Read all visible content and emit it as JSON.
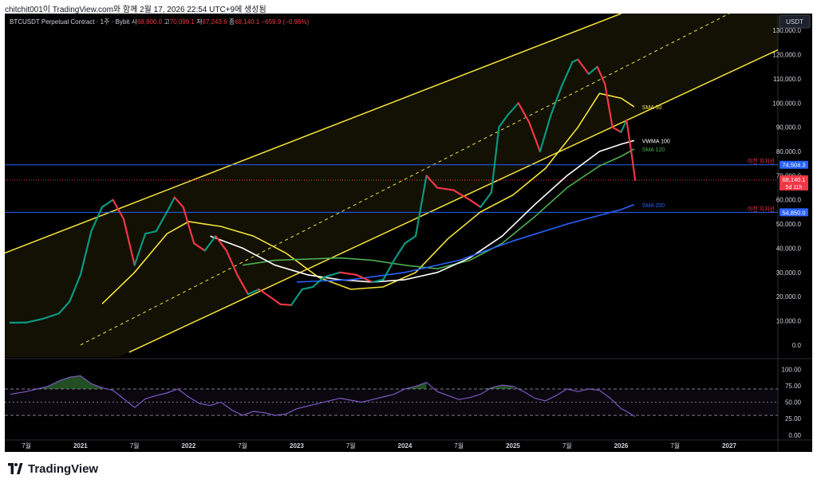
{
  "header": {
    "caption": "chitchit001이 TradingView.com와 함께 2월 17, 2026 22:54 UTC+9에 생성됨"
  },
  "footer": {
    "brand": "TradingView"
  },
  "legend": {
    "symbol": "BTCUSDT Perpetual Contract · 1주 · Bybit",
    "open_label": "시",
    "open": "68,800.0",
    "high_label": "고",
    "high": "70,099.1",
    "low_label": "저",
    "low": "67,243.6",
    "close_label": "종",
    "close": "68,140.1",
    "change": "−659.9 (−0.96%)"
  },
  "price_axis": {
    "currency": "USDT",
    "ticks": [
      {
        "v": 0,
        "label": "0.0"
      },
      {
        "v": 10000,
        "label": "10,000.0"
      },
      {
        "v": 20000,
        "label": "20,000.0"
      },
      {
        "v": 30000,
        "label": "30,000.0"
      },
      {
        "v": 40000,
        "label": "40,000.0"
      },
      {
        "v": 50000,
        "label": "50,000.0"
      },
      {
        "v": 60000,
        "label": "60,000.0"
      },
      {
        "v": 70000,
        "label": "70,000.0"
      },
      {
        "v": 80000,
        "label": "80,000.0"
      },
      {
        "v": 90000,
        "label": "90,000.0"
      },
      {
        "v": 100000,
        "label": "100,000.0"
      },
      {
        "v": 110000,
        "label": "110,000.0"
      },
      {
        "v": 120000,
        "label": "120,000.0"
      },
      {
        "v": 130000,
        "label": "130,000.0"
      }
    ]
  },
  "rsi_axis": {
    "ticks": [
      {
        "v": 100,
        "label": "100.00"
      },
      {
        "v": 75,
        "label": "75.00"
      },
      {
        "v": 50,
        "label": "50.00"
      },
      {
        "v": 25,
        "label": "25.00"
      },
      {
        "v": 0,
        "label": "0.00"
      }
    ]
  },
  "time_axis": {
    "ticks": [
      {
        "t": 2020.5,
        "label": "7월",
        "bold": false
      },
      {
        "t": 2021.0,
        "label": "2021",
        "bold": true
      },
      {
        "t": 2021.5,
        "label": "7월",
        "bold": false
      },
      {
        "t": 2022.0,
        "label": "2022",
        "bold": true
      },
      {
        "t": 2022.5,
        "label": "7월",
        "bold": false
      },
      {
        "t": 2023.0,
        "label": "2023",
        "bold": true
      },
      {
        "t": 2023.5,
        "label": "7월",
        "bold": false
      },
      {
        "t": 2024.0,
        "label": "2024",
        "bold": true
      },
      {
        "t": 2024.5,
        "label": "7월",
        "bold": false
      },
      {
        "t": 2025.0,
        "label": "2025",
        "bold": true
      },
      {
        "t": 2025.5,
        "label": "7월",
        "bold": false
      },
      {
        "t": 2026.0,
        "label": "2026",
        "bold": true
      },
      {
        "t": 2026.5,
        "label": "7월",
        "bold": false
      },
      {
        "t": 2027.0,
        "label": "2027",
        "bold": true
      }
    ]
  },
  "chart_data": {
    "type": "line",
    "title": "BTCUSDT Perpetual Contract · 1주 · Bybit",
    "ylim": [
      -5000,
      137000
    ],
    "xlim": [
      2020.3,
      2027.45
    ],
    "price_series": {
      "name": "",
      "t": [
        2020.35,
        2020.5,
        2020.65,
        2020.8,
        2020.9,
        2021.0,
        2021.1,
        2021.2,
        2021.3,
        2021.4,
        2021.5,
        2021.6,
        2021.7,
        2021.8,
        2021.87,
        2021.95,
        2022.05,
        2022.15,
        2022.25,
        2022.35,
        2022.45,
        2022.55,
        2022.65,
        2022.75,
        2022.85,
        2022.95,
        2023.05,
        2023.15,
        2023.25,
        2023.4,
        2023.55,
        2023.7,
        2023.8,
        2023.9,
        2024.0,
        2024.1,
        2024.2,
        2024.3,
        2024.45,
        2024.6,
        2024.7,
        2024.8,
        2024.87,
        2024.95,
        2025.05,
        2025.15,
        2025.25,
        2025.35,
        2025.45,
        2025.55,
        2025.6,
        2025.7,
        2025.78,
        2025.85,
        2025.92,
        2026.0,
        2026.05,
        2026.1,
        2026.13
      ],
      "values": [
        9200,
        9300,
        10800,
        13000,
        18000,
        29000,
        47000,
        57000,
        60000,
        52000,
        33000,
        46000,
        47000,
        55000,
        61000,
        57000,
        42000,
        39000,
        45000,
        39000,
        29000,
        21000,
        23000,
        20000,
        16800,
        16500,
        23000,
        24000,
        28000,
        30000,
        29000,
        26000,
        27000,
        35000,
        42000,
        45000,
        70000,
        65000,
        64000,
        60000,
        57000,
        63000,
        90000,
        95000,
        100000,
        92000,
        80000,
        95000,
        107000,
        117000,
        118000,
        112000,
        115000,
        108000,
        90000,
        88000,
        93000,
        78000,
        68140
      ]
    },
    "channel": {
      "upper": [
        [
          2020.3,
          38000
        ],
        [
          2026.0,
          137000
        ]
      ],
      "lower": [
        [
          2021.45,
          -3000
        ],
        [
          2027.45,
          122000
        ]
      ],
      "middle": [
        [
          2021.0,
          0
        ],
        [
          2027.0,
          137000
        ]
      ]
    },
    "series": [
      {
        "name": "SMA 50",
        "color": "#f7e43a",
        "t": [
          2021.2,
          2021.5,
          2021.8,
          2022.0,
          2022.3,
          2022.6,
          2022.9,
          2023.2,
          2023.5,
          2023.8,
          2024.1,
          2024.4,
          2024.7,
          2025.0,
          2025.3,
          2025.6,
          2025.8,
          2026.0,
          2026.12
        ],
        "values": [
          17000,
          30000,
          46000,
          51000,
          49000,
          45000,
          38000,
          28000,
          23000,
          24000,
          30000,
          44000,
          55000,
          62000,
          73000,
          90000,
          104000,
          102000,
          98500
        ]
      },
      {
        "name": "SMA 120",
        "color": "#4caf50",
        "t": [
          2022.5,
          2022.8,
          2023.1,
          2023.4,
          2023.7,
          2024.0,
          2024.3,
          2024.6,
          2024.9,
          2025.2,
          2025.5,
          2025.8,
          2026.0,
          2026.12
        ],
        "values": [
          33000,
          35000,
          35500,
          36000,
          35000,
          33000,
          31500,
          35000,
          42000,
          53000,
          65000,
          74000,
          78000,
          81000
        ]
      },
      {
        "name": "VWMA 100",
        "color": "#ffffff",
        "t": [
          2022.2,
          2022.5,
          2022.8,
          2023.1,
          2023.4,
          2023.7,
          2024.0,
          2024.3,
          2024.6,
          2024.9,
          2025.2,
          2025.5,
          2025.8,
          2026.0,
          2026.12
        ],
        "values": [
          45000,
          40000,
          33000,
          29000,
          27000,
          26000,
          27000,
          30000,
          36000,
          45000,
          58000,
          70000,
          80000,
          83000,
          84500
        ]
      },
      {
        "name": "SMA 200",
        "color": "#2962ff",
        "t": [
          2023.0,
          2023.5,
          2024.0,
          2024.5,
          2025.0,
          2025.5,
          2026.0,
          2026.12
        ],
        "values": [
          26000,
          27000,
          30000,
          35000,
          43000,
          50000,
          56000,
          58000
        ]
      }
    ],
    "levels": [
      {
        "name": "이전 지지선",
        "value": 74504.3,
        "label": "74,504.3",
        "color": "#2962ff"
      },
      {
        "name": "이전 지지선",
        "value": 54850.0,
        "label": "54,850.0",
        "color": "#2962ff"
      }
    ],
    "last_price": {
      "value": 68140.1,
      "label": "68,140.1",
      "countdown": "5d 11h",
      "color": "#f23645"
    },
    "rsi": {
      "ylim": [
        -5,
        110
      ],
      "upper_band": 70,
      "lower_band": 30,
      "mid": 50,
      "color": "#7e57c2",
      "t": [
        2020.35,
        2020.5,
        2020.6,
        2020.7,
        2020.8,
        2020.9,
        2021.0,
        2021.1,
        2021.2,
        2021.3,
        2021.4,
        2021.5,
        2021.6,
        2021.7,
        2021.8,
        2021.9,
        2022.0,
        2022.1,
        2022.2,
        2022.3,
        2022.4,
        2022.5,
        2022.6,
        2022.7,
        2022.8,
        2022.9,
        2023.0,
        2023.1,
        2023.2,
        2023.3,
        2023.4,
        2023.5,
        2023.6,
        2023.7,
        2023.8,
        2023.9,
        2024.0,
        2024.1,
        2024.2,
        2024.3,
        2024.4,
        2024.5,
        2024.6,
        2024.7,
        2024.8,
        2024.9,
        2025.0,
        2025.1,
        2025.2,
        2025.3,
        2025.4,
        2025.5,
        2025.6,
        2025.7,
        2025.8,
        2025.9,
        2026.0,
        2026.05,
        2026.13
      ],
      "values": [
        62,
        66,
        70,
        74,
        82,
        88,
        90,
        78,
        72,
        68,
        55,
        42,
        55,
        60,
        64,
        70,
        58,
        48,
        45,
        50,
        38,
        30,
        36,
        34,
        30,
        32,
        40,
        44,
        48,
        52,
        56,
        53,
        50,
        54,
        58,
        62,
        70,
        74,
        80,
        66,
        60,
        54,
        57,
        62,
        72,
        76,
        74,
        66,
        56,
        52,
        60,
        70,
        66,
        70,
        68,
        56,
        40,
        36,
        28
      ]
    }
  }
}
